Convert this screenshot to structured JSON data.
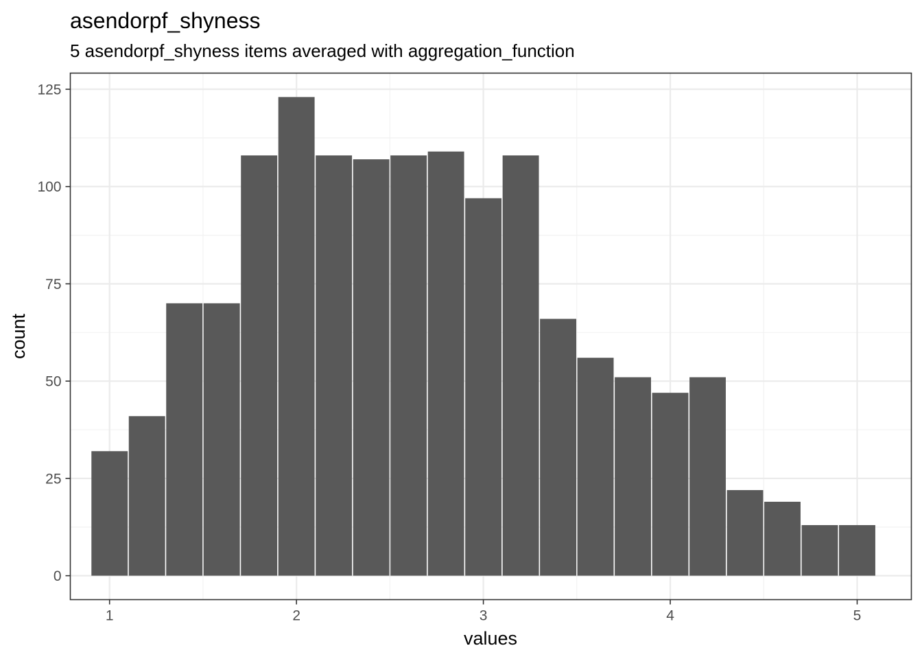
{
  "chart_data": {
    "type": "bar",
    "title": "asendorpf_shyness",
    "subtitle": "5 asendorpf_shyness items averaged with aggregation_function",
    "xlabel": "values",
    "ylabel": "count",
    "x": [
      1.0,
      1.2,
      1.4,
      1.6,
      1.8,
      2.0,
      2.2,
      2.4,
      2.6,
      2.8,
      3.0,
      3.2,
      3.4,
      3.6,
      3.8,
      4.0,
      4.2,
      4.4,
      4.6,
      4.8,
      5.0
    ],
    "values": [
      32,
      41,
      70,
      70,
      108,
      123,
      108,
      107,
      108,
      109,
      97,
      108,
      66,
      56,
      51,
      47,
      51,
      22,
      19,
      13,
      13
    ],
    "bar_width": 0.2,
    "xlim": [
      0.79,
      5.29
    ],
    "ylim": [
      -6.15,
      129.15
    ],
    "x_ticks": [
      1,
      2,
      3,
      4,
      5
    ],
    "y_ticks": [
      0,
      25,
      50,
      75,
      100,
      125
    ],
    "grid": true,
    "colors": {
      "bar": "#595959",
      "panel_border": "#333333",
      "grid_major": "#ebebeb",
      "grid_minor": "#f2f2f2"
    }
  }
}
